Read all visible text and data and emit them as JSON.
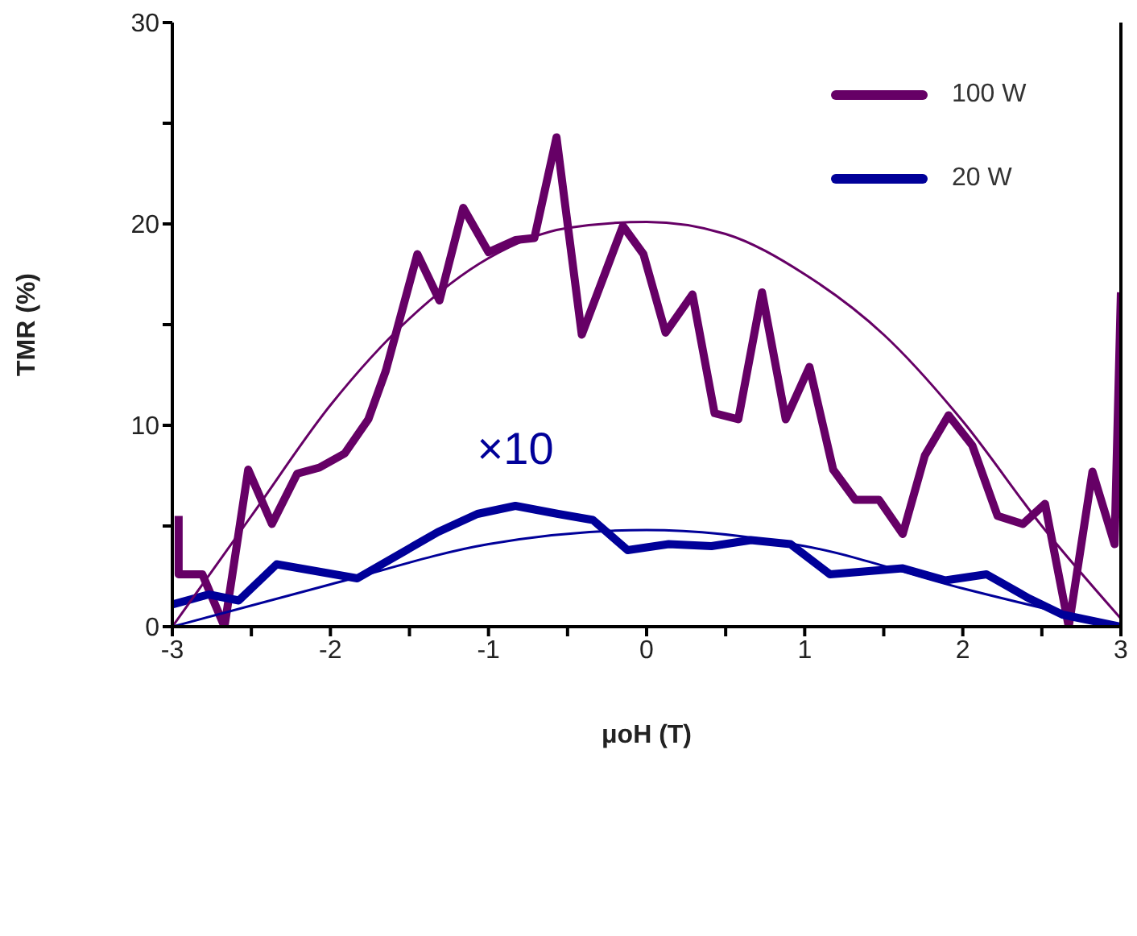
{
  "chart_data": {
    "type": "line",
    "xlabel": "μoH (T)",
    "ylabel": "TMR (%)",
    "xlim": [
      -3,
      3
    ],
    "xticks": [
      -3,
      {
        "value": -2.5,
        "label": null
      },
      -2,
      {
        "value": -1.5,
        "label": null
      },
      -1,
      {
        "value": -0.5,
        "label": null
      },
      0,
      {
        "value": 0.5,
        "label": null
      },
      1,
      {
        "value": 1.5,
        "label": null
      },
      2,
      {
        "value": 2.5,
        "label": null
      },
      3
    ],
    "ylim": [
      0,
      30
    ],
    "yticks": [
      0,
      {
        "value": 5,
        "label": null
      },
      10,
      {
        "value": 15,
        "label": null
      },
      20,
      {
        "value": 25,
        "label": null
      },
      30
    ],
    "grid": false,
    "legend": "top right",
    "marker": "none",
    "series": [
      {
        "name": "100 W",
        "color": "#660066",
        "x": [
          -2.96,
          -2.96,
          -2.81,
          -2.67,
          -2.52,
          -2.37,
          -2.21,
          -2.07,
          -1.91,
          -1.76,
          -1.65,
          -1.45,
          -1.31,
          -1.16,
          -1.0,
          -0.83,
          -0.71,
          -0.57,
          -0.41,
          -0.15,
          -0.02,
          0.12,
          0.29,
          0.43,
          0.58,
          0.73,
          0.88,
          1.03,
          1.18,
          1.32,
          1.47,
          1.62,
          1.76,
          1.91,
          2.06,
          2.22,
          2.38,
          2.52,
          2.67,
          2.82,
          2.96,
          3.0
        ],
        "values": [
          5.5,
          2.6,
          2.6,
          0,
          7.8,
          5.1,
          7.6,
          7.9,
          8.6,
          10.3,
          12.7,
          18.5,
          16.2,
          20.8,
          18.6,
          19.2,
          19.3,
          24.3,
          14.5,
          19.9,
          18.5,
          14.6,
          16.5,
          10.6,
          10.3,
          16.6,
          10.3,
          12.9,
          7.8,
          6.3,
          6.3,
          4.6,
          8.5,
          10.5,
          9.0,
          5.5,
          5.1,
          6.1,
          0,
          7.7,
          4.1,
          16.6
        ]
      },
      {
        "name": "20 W",
        "color": "#000099",
        "x": [
          -3.0,
          -2.77,
          -2.58,
          -2.34,
          -1.83,
          -1.32,
          -1.07,
          -0.83,
          -0.56,
          -0.34,
          -0.12,
          0.14,
          0.41,
          0.66,
          0.91,
          1.16,
          1.62,
          1.89,
          2.15,
          2.42,
          2.63,
          3.0
        ],
        "values": [
          1.1,
          1.6,
          1.3,
          3.1,
          2.4,
          4.7,
          5.6,
          6.0,
          5.6,
          5.3,
          3.8,
          4.1,
          4.0,
          4.3,
          4.1,
          2.6,
          2.9,
          2.3,
          2.6,
          1.4,
          0.6,
          0
        ]
      },
      {
        "color": "#660066",
        "x": [
          -3,
          -2.5,
          -2,
          -1.5,
          -1,
          -0.5,
          0,
          0.5,
          1,
          1.5,
          2,
          2.5,
          3
        ],
        "values": [
          0,
          5.5,
          11,
          15.3,
          18.3,
          19.8,
          20.1,
          19.5,
          17.5,
          14.5,
          10.2,
          5,
          0.4
        ]
      },
      {
        "color": "#000099",
        "x": [
          -3,
          -2,
          -1,
          0,
          1,
          2,
          3
        ],
        "values": [
          0,
          2.1,
          4.1,
          4.8,
          4.0,
          1.9,
          0
        ]
      }
    ],
    "annotations": [
      "×10"
    ]
  }
}
